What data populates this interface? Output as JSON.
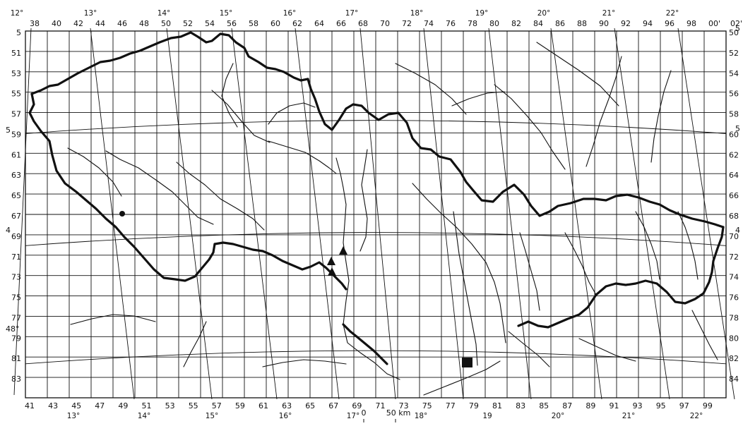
{
  "top_degree_labels": [
    "12°",
    "13°",
    "14°",
    "15°",
    "16°",
    "17°",
    "18°",
    "19°",
    "20°",
    "21°",
    "22°"
  ],
  "top_grid_labels": [
    "38",
    "40",
    "42",
    "44",
    "46",
    "48",
    "50",
    "52",
    "54",
    "56",
    "58",
    "60",
    "62",
    "64",
    "66",
    "68",
    "70",
    "72",
    "74",
    "76",
    "78",
    "80",
    "82",
    "84",
    "86",
    "88",
    "90",
    "92",
    "94",
    "96",
    "98",
    "00'",
    "02'"
  ],
  "bottom_grid_labels": [
    "41",
    "43",
    "45",
    "47",
    "49",
    "51",
    "53",
    "55",
    "57",
    "59",
    "61",
    "63",
    "65",
    "67",
    "69",
    "71",
    "73",
    "75",
    "77",
    "79",
    "81",
    "83",
    "85",
    "87",
    "89",
    "91",
    "93",
    "95",
    "97",
    "99"
  ],
  "bottom_degree_labels": [
    "13°",
    "14°",
    "15°",
    "16°",
    "17°",
    "18°",
    "19",
    "20°",
    "21°",
    "22°"
  ],
  "left_labels": [
    "5",
    "51",
    "53",
    "55",
    "57",
    "59",
    "61",
    "63",
    "65",
    "67",
    "69",
    "71",
    "73",
    "75",
    "77",
    "79",
    "81",
    "83"
  ],
  "right_labels": [
    "50",
    "52",
    "54",
    "56",
    "58",
    "60",
    "62",
    "64",
    "66",
    "68",
    "70",
    "72",
    "74",
    "76",
    "78",
    "80",
    "82",
    "84"
  ],
  "right_edge_degree_labels": [
    "5",
    "5",
    "4"
  ],
  "left_edge_degree_labels": [
    "5",
    "4",
    "48°"
  ],
  "scale_bar": {
    "zero_label": "0",
    "distance_label": "50 km"
  },
  "colors": {
    "ink": "#111111",
    "paper": "#ffffff"
  }
}
